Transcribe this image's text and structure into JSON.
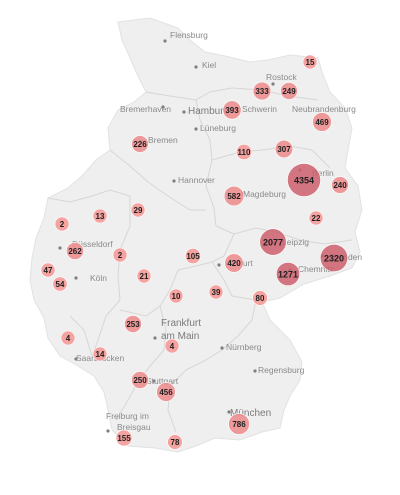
{
  "map": {
    "colors": {
      "land": "#efefef",
      "border": "#ffffff",
      "state_border": "#d4d4d4",
      "bubble_small": "#f49a98",
      "bubble_mid": "#ec8f90",
      "bubble_large": "#cc5f6c"
    },
    "cities": [
      {
        "name": "Flensburg"
      },
      {
        "name": "Kiel"
      },
      {
        "name": "Rostock"
      },
      {
        "name": "Bremerhaven"
      },
      {
        "name": "Hamburg"
      },
      {
        "name": "Schwerin"
      },
      {
        "name": "Neubrandenburg"
      },
      {
        "name": "Lüneburg"
      },
      {
        "name": "Bremen"
      },
      {
        "name": "Hannover"
      },
      {
        "name": "Berlin"
      },
      {
        "name": "Magdeburg"
      },
      {
        "name": "Düsseldorf"
      },
      {
        "name": "Köln"
      },
      {
        "name": "Leipzig"
      },
      {
        "name": "Dresden"
      },
      {
        "name": "Erfurt"
      },
      {
        "name": "Chemnitz"
      },
      {
        "name": "Frankfurt"
      },
      {
        "name": "am Main"
      },
      {
        "name": "Saarbrücken"
      },
      {
        "name": "Nürnberg"
      },
      {
        "name": "Regensburg"
      },
      {
        "name": "Stuttgart"
      },
      {
        "name": "München"
      },
      {
        "name": "Freiburg im"
      },
      {
        "name": "Breisgau"
      }
    ],
    "cases": [
      15,
      333,
      249,
      393,
      469,
      226,
      307,
      110,
      4354,
      240,
      582,
      22,
      29,
      13,
      2,
      262,
      2,
      47,
      54,
      21,
      105,
      420,
      2077,
      2320,
      1271,
      10,
      39,
      80,
      253,
      4,
      4,
      14,
      250,
      456,
      155,
      78,
      786
    ]
  }
}
